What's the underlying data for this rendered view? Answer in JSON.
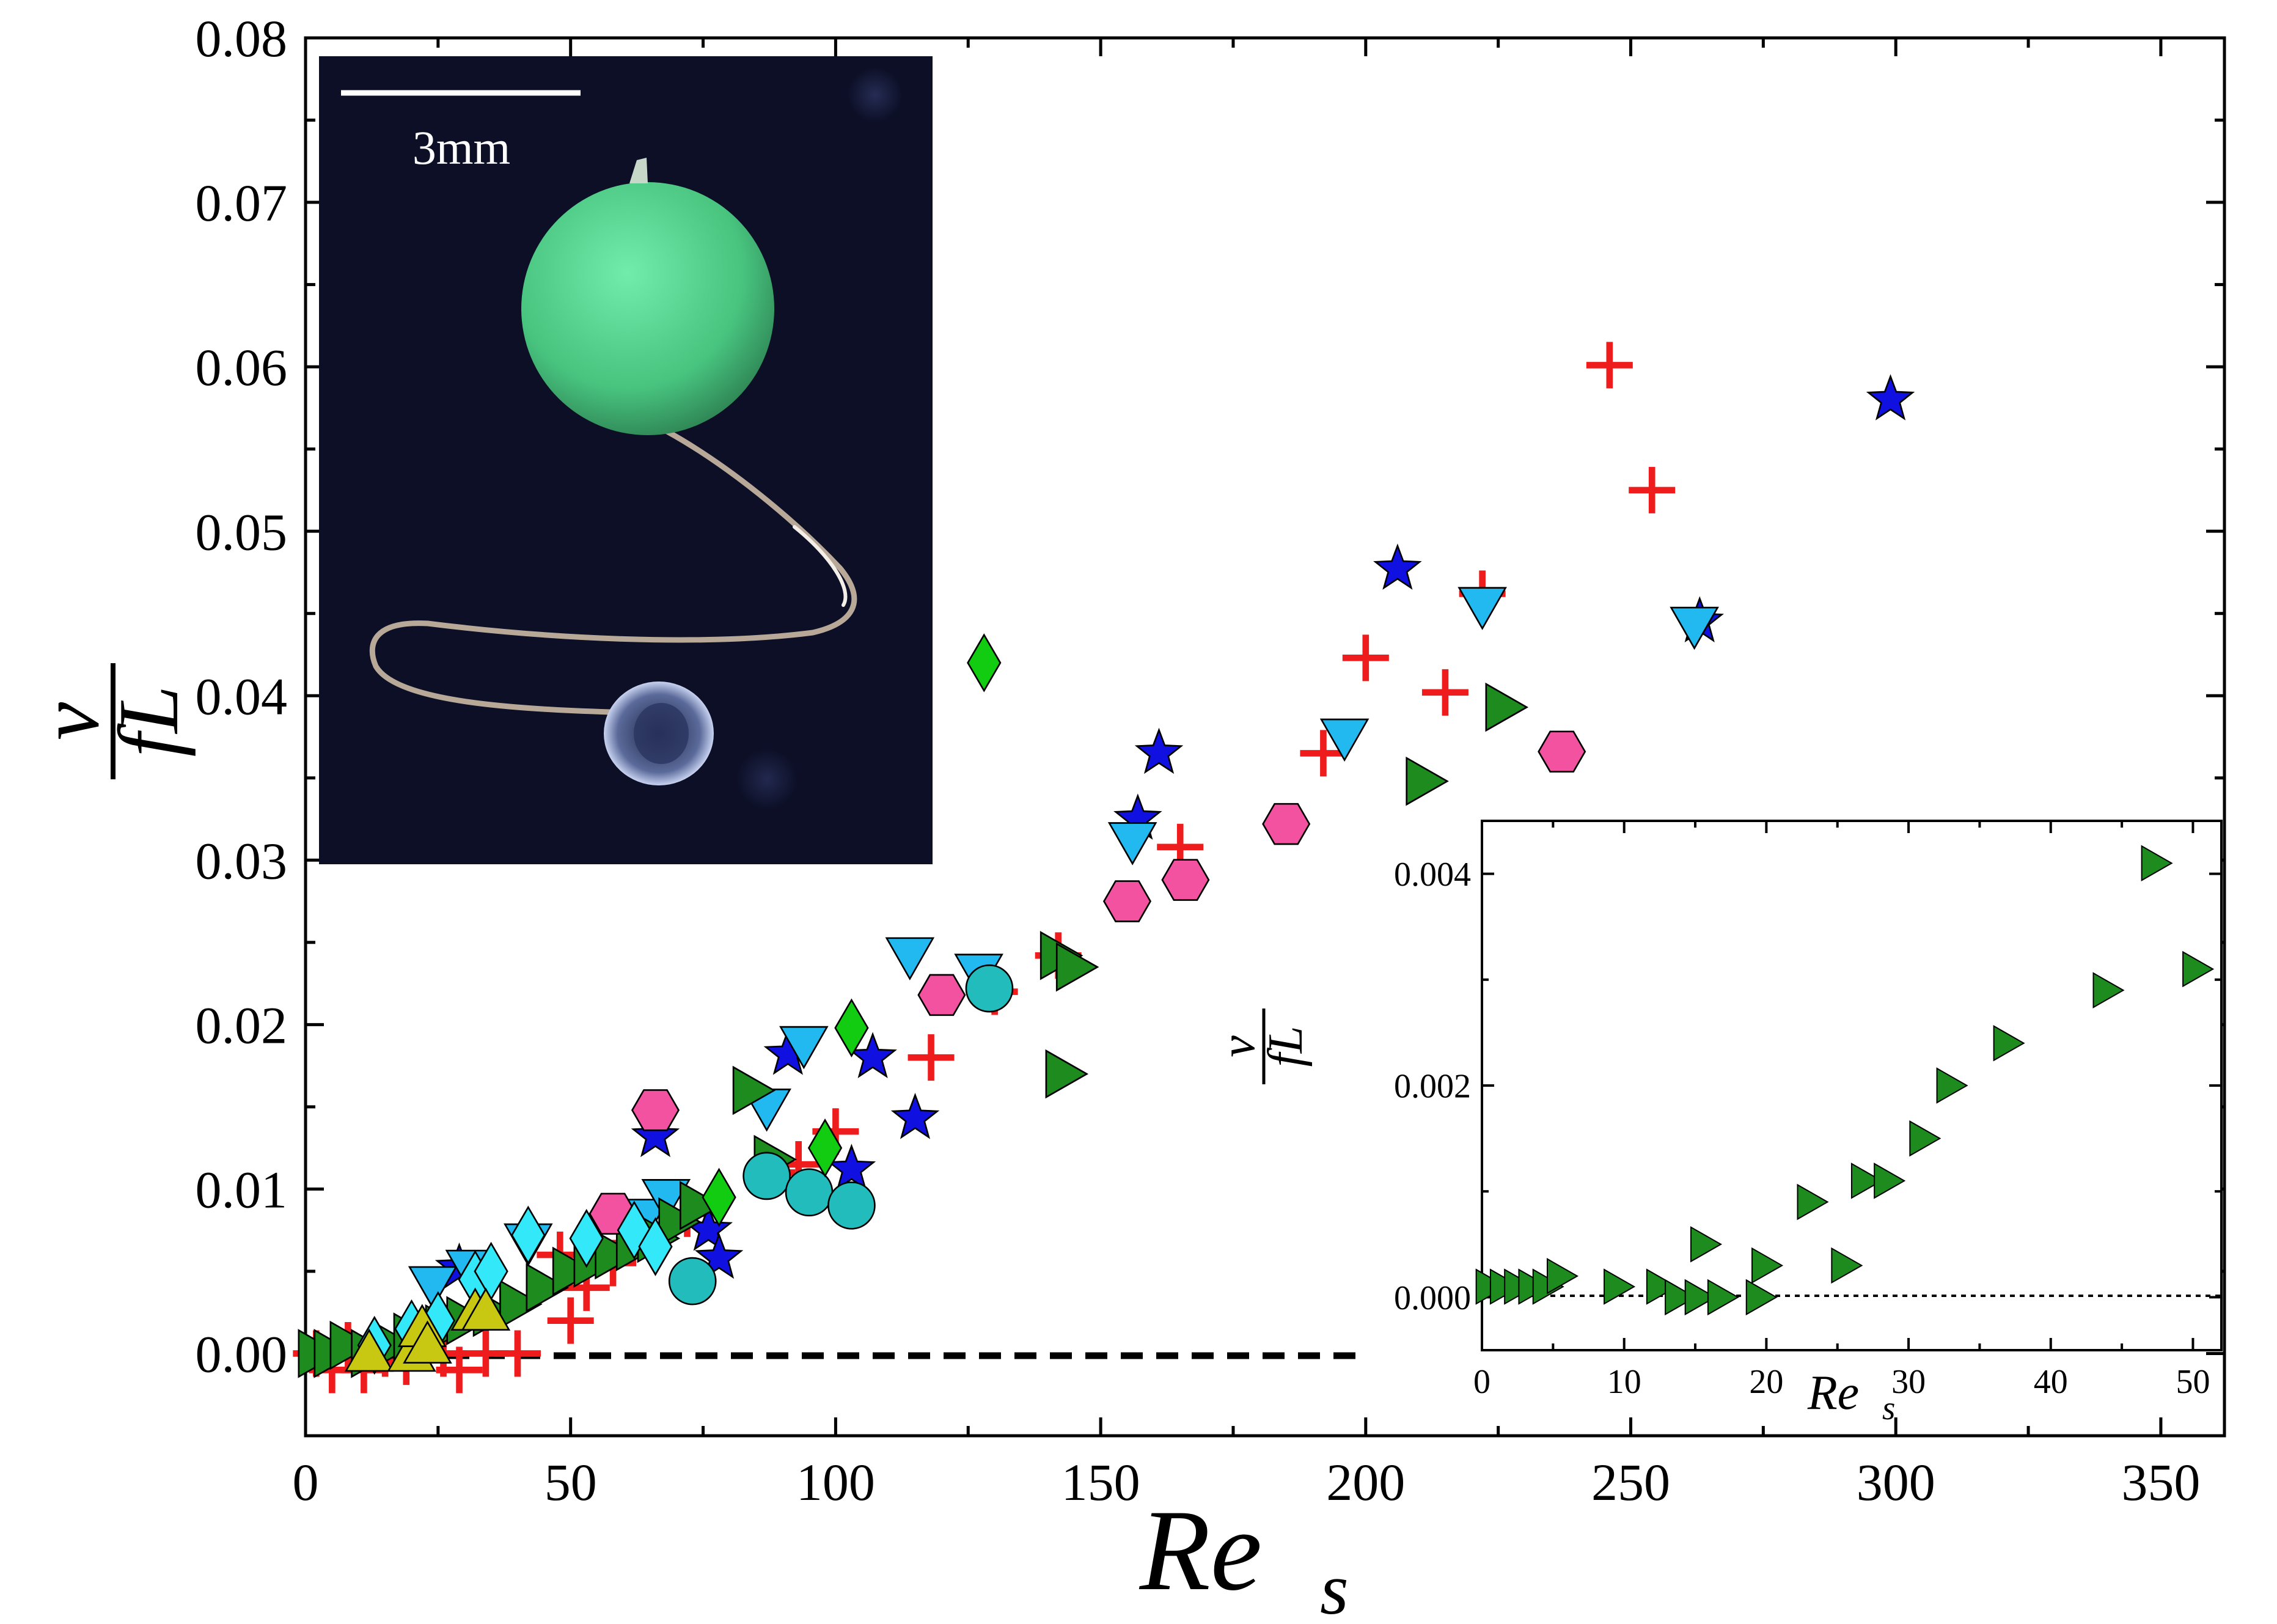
{
  "chart_data": [
    {
      "type": "scatter",
      "title": "",
      "xlabel_base": "Re",
      "xlabel_sub": "s",
      "ylabel_num": "v",
      "ylabel_den": "fL",
      "xlim": [
        0,
        362
      ],
      "ylim": [
        -0.005,
        0.08
      ],
      "xticks": [
        "0",
        "50",
        "100",
        "150",
        "200",
        "250",
        "300",
        "350"
      ],
      "yticks": [
        "0.00",
        "0.01",
        "0.02",
        "0.03",
        "0.04",
        "0.05",
        "0.06",
        "0.07",
        "0.08"
      ],
      "reference_line": {
        "y": 0.0,
        "x_from": 0,
        "x_to": 201,
        "style": "dashed"
      },
      "series": [
        {
          "name": "plus",
          "marker": "plus",
          "color": "#ee1c1c",
          "points": [
            [
              2,
              0
            ],
            [
              5,
              -0.001
            ],
            [
              8,
              0.0005
            ],
            [
              11,
              -0.001
            ],
            [
              15,
              0
            ],
            [
              19,
              -0.0005
            ],
            [
              22,
              0.0005
            ],
            [
              26,
              0
            ],
            [
              29,
              -0.001
            ],
            [
              34,
              0
            ],
            [
              40,
              0
            ],
            [
              48,
              0.006
            ],
            [
              50,
              0.002
            ],
            [
              53,
              0.004
            ],
            [
              58,
              0.0055
            ],
            [
              65,
              0.0075
            ],
            [
              68,
              0.0085
            ],
            [
              72,
              0.0085
            ],
            [
              88,
              0.011
            ],
            [
              93,
              0.0115
            ],
            [
              100,
              0.0135
            ],
            [
              118,
              0.018
            ],
            [
              130,
              0.022
            ],
            [
              142,
              0.0242
            ],
            [
              165,
              0.0308
            ],
            [
              192,
              0.0365
            ],
            [
              200,
              0.0423
            ],
            [
              215,
              0.0402
            ],
            [
              222,
              0.0462
            ],
            [
              246,
              0.0601
            ],
            [
              254,
              0.0525
            ]
          ]
        },
        {
          "name": "star",
          "marker": "star",
          "color": "#1010e0",
          "points": [
            [
              29,
              0.0052
            ],
            [
              66,
              0.0132
            ],
            [
              76,
              0.0075
            ],
            [
              78,
              0.0058
            ],
            [
              91,
              0.0182
            ],
            [
              103,
              0.0112
            ],
            [
              107,
              0.018
            ],
            [
              115,
              0.0143
            ],
            [
              157,
              0.0325
            ],
            [
              161,
              0.0365
            ],
            [
              206,
              0.0477
            ],
            [
              263,
              0.0445
            ],
            [
              299,
              0.058
            ]
          ]
        },
        {
          "name": "triangle-down",
          "marker": "tri-down",
          "color": "#22b8f0",
          "points": [
            [
              24,
              0.0042
            ],
            [
              31,
              0.0052
            ],
            [
              42,
              0.0068
            ],
            [
              64,
              0.0083
            ],
            [
              68,
              0.0095
            ],
            [
              87,
              0.015
            ],
            [
              94,
              0.0188
            ],
            [
              114,
              0.0242
            ],
            [
              127,
              0.0232
            ],
            [
              156,
              0.0312
            ],
            [
              196,
              0.0375
            ],
            [
              222,
              0.0455
            ],
            [
              262,
              0.0443
            ]
          ]
        },
        {
          "name": "triangle-right",
          "marker": "tri-right",
          "color": "#1d8b1d",
          "points": [
            [
              2,
              0
            ],
            [
              5,
              0
            ],
            [
              8,
              0.0005
            ],
            [
              12,
              0
            ],
            [
              16,
              0.0005
            ],
            [
              20,
              0.001
            ],
            [
              26,
              0.0015
            ],
            [
              30,
              0.002
            ],
            [
              35,
              0.0025
            ],
            [
              40,
              0.003
            ],
            [
              45,
              0.004
            ],
            [
              50,
              0.005
            ],
            [
              54,
              0.0055
            ],
            [
              58,
              0.006
            ],
            [
              62,
              0.0065
            ],
            [
              66,
              0.007
            ],
            [
              70,
              0.008
            ],
            [
              74,
              0.009
            ],
            [
              84,
              0.016
            ],
            [
              88,
              0.0118
            ],
            [
              142,
              0.0242
            ],
            [
              145,
              0.0235
            ],
            [
              143,
              0.017
            ],
            [
              211,
              0.0348
            ],
            [
              226,
              0.0393
            ]
          ]
        },
        {
          "name": "hexagon",
          "marker": "hexagon",
          "color": "#f2529f",
          "points": [
            [
              58,
              0.0085
            ],
            [
              66,
              0.0148
            ],
            [
              120,
              0.0218
            ],
            [
              155,
              0.0275
            ],
            [
              166,
              0.0288
            ],
            [
              185,
              0.0322
            ],
            [
              237,
              0.0366
            ]
          ]
        },
        {
          "name": "circle",
          "marker": "circle",
          "color": "#22bcbc",
          "points": [
            [
              73,
              0.0044
            ],
            [
              87,
              0.0108
            ],
            [
              95,
              0.0098
            ],
            [
              103,
              0.009
            ],
            [
              129,
              0.0222
            ]
          ]
        },
        {
          "name": "diamond-cyan",
          "marker": "diamond",
          "color": "#33e8f8",
          "points": [
            [
              13,
              0.0005
            ],
            [
              20,
              0.0015
            ],
            [
              25,
              0.002
            ],
            [
              32,
              0.0045
            ],
            [
              35,
              0.005
            ],
            [
              42,
              0.0072
            ],
            [
              53,
              0.007
            ],
            [
              62,
              0.0075
            ],
            [
              66,
              0.0065
            ]
          ]
        },
        {
          "name": "diamond-green",
          "marker": "diamond",
          "color": "#12cc12",
          "points": [
            [
              78,
              0.0095
            ],
            [
              98,
              0.0125
            ],
            [
              103,
              0.0198
            ],
            [
              128,
              0.042
            ]
          ]
        },
        {
          "name": "triangle-up",
          "marker": "tri-up",
          "color": "#c8c812",
          "points": [
            [
              12,
              0
            ],
            [
              20,
              0
            ],
            [
              22,
              0.0015
            ],
            [
              23,
              0.0005
            ],
            [
              32,
              0.0025
            ],
            [
              34,
              0.0025
            ]
          ]
        }
      ]
    },
    {
      "type": "scatter",
      "title": "inset",
      "xlabel_base": "Re",
      "xlabel_sub": "s",
      "ylabel_num": "v",
      "ylabel_den": "fL",
      "xlim": [
        0,
        52
      ],
      "ylim": [
        -0.0005,
        0.0045
      ],
      "xticks": [
        "0",
        "10",
        "20",
        "30",
        "40",
        "50"
      ],
      "yticks": [
        "0.000",
        "0.002",
        "0.004"
      ],
      "reference_line": {
        "y": 0.0,
        "x_from": 0,
        "x_to": 52,
        "style": "dotted"
      },
      "series": [
        {
          "name": "triangle-right",
          "marker": "tri-right",
          "color": "#1d8b1d",
          "points": [
            [
              0.5,
              0.0001
            ],
            [
              1.5,
              0.0001
            ],
            [
              2.5,
              0.0001
            ],
            [
              3.5,
              0.0001
            ],
            [
              4.5,
              0.0001
            ],
            [
              5.5,
              0.0002
            ],
            [
              9.5,
              0.0001
            ],
            [
              12.5,
              0.0001
            ],
            [
              13.8,
              0
            ],
            [
              15.2,
              0
            ],
            [
              15.6,
              0.0005
            ],
            [
              16.8,
              0
            ],
            [
              19.5,
              0
            ],
            [
              19.9,
              0.0003
            ],
            [
              23.1,
              0.0009
            ],
            [
              25.5,
              0.0003
            ],
            [
              26.9,
              0.0011
            ],
            [
              28.5,
              0.0011
            ],
            [
              31,
              0.0015
            ],
            [
              32.9,
              0.002
            ],
            [
              36.9,
              0.0024
            ],
            [
              43.9,
              0.0029
            ],
            [
              47.3,
              0.0041
            ],
            [
              50.2,
              0.0031
            ]
          ]
        }
      ]
    }
  ],
  "photo_inset": {
    "scale_label": "3mm",
    "background_color": "#0c0f26",
    "ball_color": "#4cc884"
  }
}
